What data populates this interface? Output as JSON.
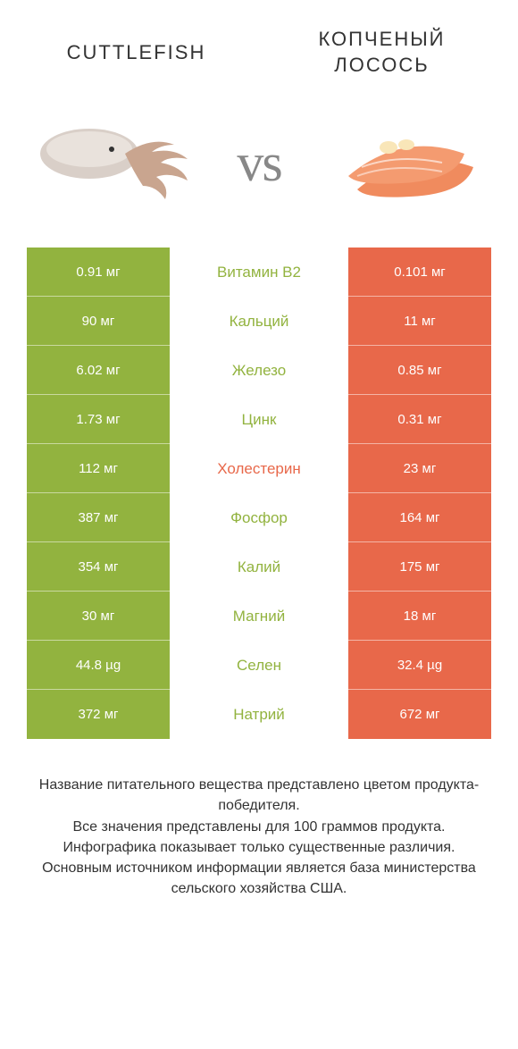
{
  "colors": {
    "left": "#92b33f",
    "right": "#e8684a",
    "mid_text_default": "#333333"
  },
  "header": {
    "left": "CUTTLEFISH",
    "right": "КОПЧЕНЫЙ ЛОСОСЬ",
    "vs": "vs"
  },
  "images": {
    "left_alt": "cuttlefish",
    "right_alt": "smoked-salmon"
  },
  "rows": [
    {
      "label": "Витамин B2",
      "left": "0.91 мг",
      "right": "0.101 мг",
      "winner": "left"
    },
    {
      "label": "Кальций",
      "left": "90 мг",
      "right": "11 мг",
      "winner": "left"
    },
    {
      "label": "Железо",
      "left": "6.02 мг",
      "right": "0.85 мг",
      "winner": "left"
    },
    {
      "label": "Цинк",
      "left": "1.73 мг",
      "right": "0.31 мг",
      "winner": "left"
    },
    {
      "label": "Холестерин",
      "left": "112 мг",
      "right": "23 мг",
      "winner": "right"
    },
    {
      "label": "Фосфор",
      "left": "387 мг",
      "right": "164 мг",
      "winner": "left"
    },
    {
      "label": "Калий",
      "left": "354 мг",
      "right": "175 мг",
      "winner": "left"
    },
    {
      "label": "Магний",
      "left": "30 мг",
      "right": "18 мг",
      "winner": "left"
    },
    {
      "label": "Селен",
      "left": "44.8 µg",
      "right": "32.4 µg",
      "winner": "left"
    },
    {
      "label": "Натрий",
      "left": "372 мг",
      "right": "672 мг",
      "winner": "left"
    }
  ],
  "footer": {
    "l1": "Название питательного вещества представлено цветом продукта-победителя.",
    "l2": "Все значения представлены для 100 граммов продукта.",
    "l3": "Инфографика показывает только существенные различия.",
    "l4": "Основным источником информации является база министерства сельского хозяйства США."
  }
}
